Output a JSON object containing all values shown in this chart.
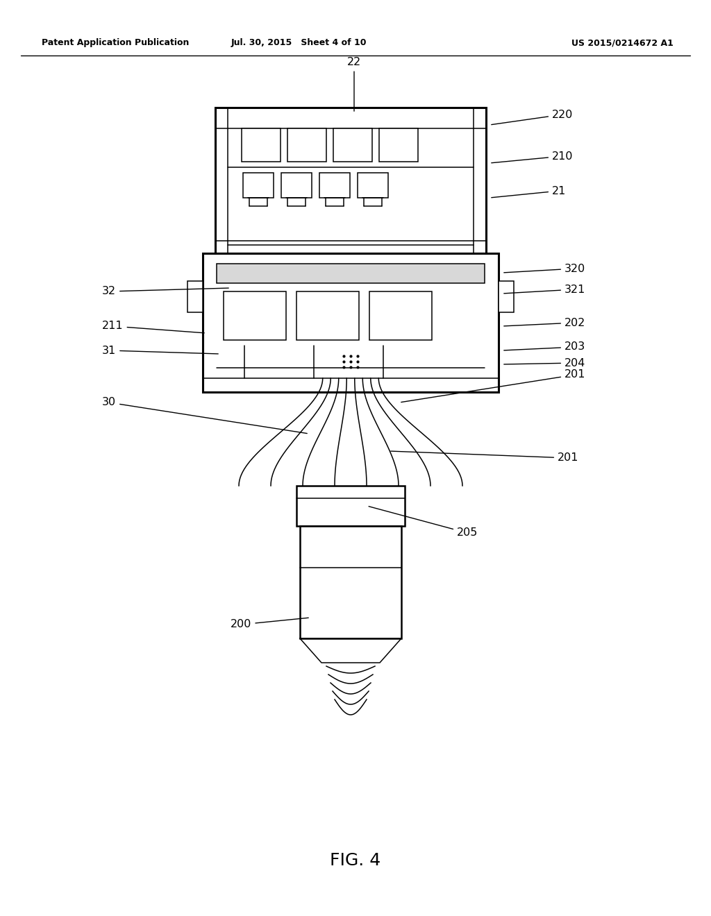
{
  "header_left": "Patent Application Publication",
  "header_mid": "Jul. 30, 2015   Sheet 4 of 10",
  "header_right": "US 2015/0214672 A1",
  "fig_label": "FIG. 4",
  "background_color": "#ffffff",
  "line_color": "#000000"
}
